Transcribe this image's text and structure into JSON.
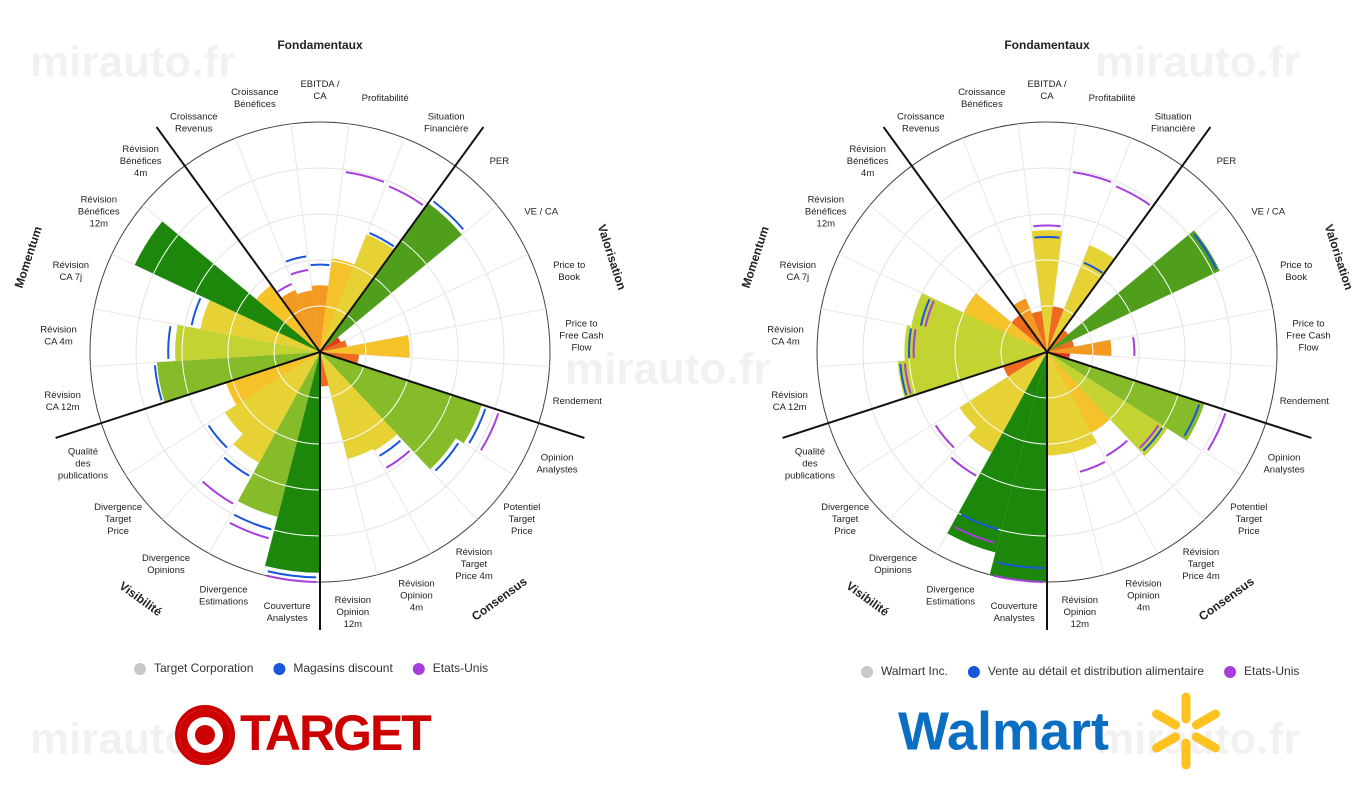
{
  "watermark": "mirauto.fr",
  "chart_data": [
    {
      "type": "polar_bar",
      "logo": "TARGET",
      "groups": [
        "Fondamentaux",
        "Valorisation",
        "Consensus",
        "Visibilité",
        "Momentum"
      ],
      "categories": [
        "Croissance\nRevenus",
        "Croissance\nBénéfices",
        "EBITDA /\nCA",
        "Profitabilité",
        "Situation\nFinancière",
        "PER",
        "VE / CA",
        "Price to\nBook",
        "Price to\nFree Cash\nFlow",
        "Rendement",
        "Opinion\nAnalystes",
        "Potentiel\nTarget\nPrice",
        "Révision\nTarget\nPrice 4m",
        "Révision\nOpinion\n4m",
        "Révision\nOpinion\n12m",
        "Couverture\nAnalystes",
        "Divergence\nEstimations",
        "Divergence\nOpinions",
        "Divergence\nTarget\nPrice",
        "Qualité\ndes\npublications",
        "Révision\nCA 12m",
        "Révision\nCA 4m",
        "Révision\nCA 7j",
        "Révision\nBénéfices\n12m",
        "Révision\nBénéfices\n4m"
      ],
      "rlim": [
        0,
        100
      ],
      "rticks": [
        20,
        40,
        60,
        80,
        100
      ],
      "color_scale": [
        "#e8381a",
        "#ee6a1e",
        "#f39a22",
        "#f6c22a",
        "#e6d234",
        "#c2d332",
        "#86bb2a",
        "#4f9f1c",
        "#1d870c"
      ],
      "series": [
        {
          "name": "Target Corporation",
          "color": "#c8c8c8",
          "values": [
            29,
            27,
            29,
            41,
            55,
            80,
            10,
            12,
            39,
            17,
            74,
            70,
            49,
            48,
            15,
            96,
            74,
            55,
            49,
            43,
            71,
            63,
            53,
            89,
            36
          ]
        },
        {
          "name": "Magasins discount",
          "color": "#1a56db",
          "values": [
            null,
            42,
            38,
            null,
            56,
            82,
            null,
            null,
            null,
            null,
            76,
            72,
            52,
            null,
            null,
            98,
            80,
            62,
            58,
            null,
            72,
            66,
            57,
            null,
            null
          ]
        },
        {
          "name": "Etats-Unis",
          "color": "#a63fdb",
          "values": [
            32,
            36,
            null,
            79,
            78,
            null,
            null,
            null,
            null,
            null,
            82,
            null,
            58,
            null,
            null,
            100,
            84,
            76,
            null,
            null,
            null,
            null,
            null,
            null,
            null
          ]
        }
      ]
    },
    {
      "type": "polar_bar",
      "logo": "Walmart",
      "groups": [
        "Fondamentaux",
        "Valorisation",
        "Consensus",
        "Visibilité",
        "Momentum"
      ],
      "categories": [
        "Croissance\nRevenus",
        "Croissance\nBénéfices",
        "EBITDA /\nCA",
        "Profitabilité",
        "Situation\nFinancière",
        "PER",
        "VE / CA",
        "Price to\nBook",
        "Price to\nFree Cash\nFlow",
        "Rendement",
        "Opinion\nAnalystes",
        "Potentiel\nTarget\nPrice",
        "Révision\nTarget\nPrice 4m",
        "Révision\nOpinion\n4m",
        "Révision\nOpinion\n12m",
        "Couverture\nAnalystes",
        "Divergence\nEstimations",
        "Divergence\nOpinions",
        "Divergence\nTarget\nPrice",
        "Qualité\ndes\npublications",
        "Révision\nCA 12m",
        "Révision\nCA 4m",
        "Révision\nCA 7j",
        "Révision\nBénéfices\n12m",
        "Révision\nBénéfices\n4m"
      ],
      "rlim": [
        0,
        100
      ],
      "rticks": [
        20,
        40,
        60,
        80,
        100
      ],
      "color_scale": [
        "#e8381a",
        "#ee6a1e",
        "#f39a22",
        "#f6c22a",
        "#e6d234",
        "#c2d332",
        "#86bb2a",
        "#4f9f1c",
        "#1d870c"
      ],
      "series": [
        {
          "name": "Walmart Inc.",
          "color": "#c8c8c8",
          "values": [
            25,
            18,
            53,
            20,
            50,
            12,
            83,
            12,
            28,
            10,
            72,
            62,
            40,
            45,
            45,
            100,
            90,
            50,
            45,
            20,
            65,
            62,
            60,
            40,
            20
          ]
        },
        {
          "name": "Vente au détail et distribution alimentaire",
          "color": "#1a56db",
          "values": [
            null,
            null,
            50,
            null,
            42,
            null,
            82,
            null,
            null,
            null,
            70,
            60,
            null,
            null,
            null,
            94,
            80,
            null,
            null,
            null,
            64,
            60,
            56,
            null,
            null
          ]
        },
        {
          "name": "Etats-Unis",
          "color": "#a63fdb",
          "values": [
            null,
            null,
            55,
            79,
            78,
            null,
            null,
            null,
            38,
            null,
            82,
            58,
            52,
            54,
            null,
            100,
            86,
            62,
            58,
            null,
            62,
            58,
            54,
            null,
            null
          ]
        }
      ]
    }
  ]
}
